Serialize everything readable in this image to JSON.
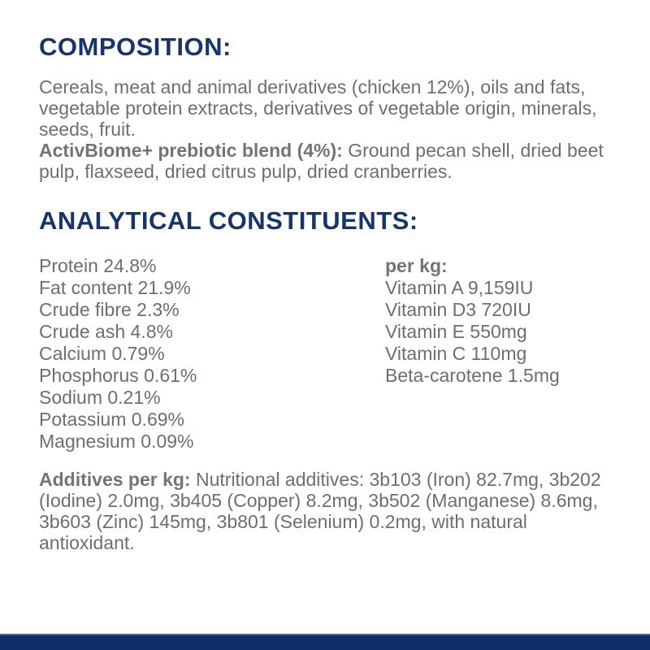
{
  "page": {
    "background_color": "#ffffff",
    "heading_color": "#16356b",
    "body_text_color": "#6d6e70",
    "bottom_bar_color": "#0e2d6b"
  },
  "composition": {
    "heading": "COMPOSITION:",
    "body": "Cereals, meat and animal derivatives (chicken 12%), oils and fats, vegetable protein extracts, derivatives of vegetable origin, minerals, seeds, fruit.",
    "blend_label": "ActivBiome+ prebiotic blend (4%):",
    "blend_body": " Ground pecan shell, dried beet pulp, flaxseed, dried citrus pulp, dried cranberries."
  },
  "analytical": {
    "heading": "ANALYTICAL CONSTITUENTS:",
    "constituents": [
      "Protein 24.8%",
      "Fat content 21.9%",
      "Crude fibre 2.3%",
      "Crude ash 4.8%",
      "Calcium 0.79%",
      "Phosphorus 0.61%",
      "Sodium 0.21%",
      "Potassium 0.69%",
      "Magnesium 0.09%"
    ],
    "per_kg_label": "per kg:",
    "per_kg_values": [
      "Vitamin A 9,159IU",
      "Vitamin D3 720IU",
      "Vitamin E 550mg",
      "Vitamin C 110mg",
      "Beta-carotene 1.5mg"
    ]
  },
  "additives": {
    "label": "Additives per kg:",
    "body": " Nutritional additives: 3b103 (Iron) 82.7mg, 3b202 (Iodine) 2.0mg, 3b405 (Copper) 8.2mg, 3b502 (Manganese) 8.6mg, 3b603 (Zinc) 145mg, 3b801 (Selenium) 0.2mg, with natural antioxidant."
  }
}
